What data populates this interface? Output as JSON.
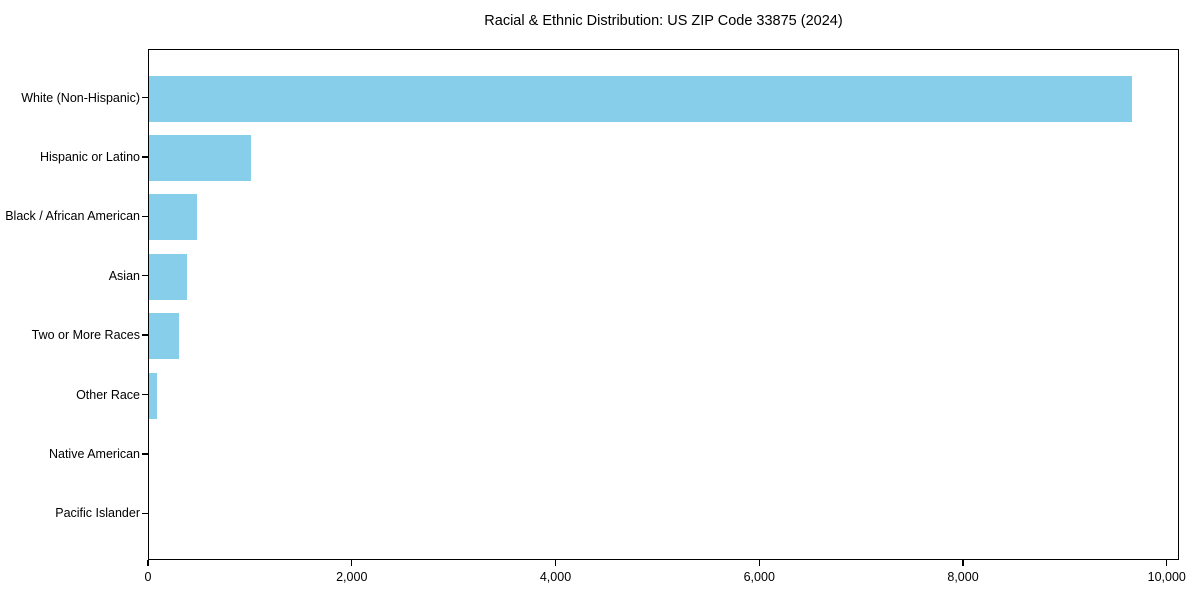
{
  "chart_data": {
    "type": "bar",
    "orientation": "horizontal",
    "title": "Racial & Ethnic Distribution: US ZIP Code 33875 (2024)",
    "categories": [
      "White (Non-Hispanic)",
      "Hispanic or Latino",
      "Black / African American",
      "Asian",
      "Two or More Races",
      "Other Race",
      "Native American",
      "Pacific Islander"
    ],
    "values": [
      9650,
      1000,
      470,
      370,
      295,
      80,
      0,
      0
    ],
    "xlabel": "",
    "ylabel": "",
    "xlim": [
      0,
      10120
    ],
    "xticks": {
      "values": [
        0,
        2000,
        4000,
        6000,
        8000,
        10000
      ],
      "labels": [
        "0",
        "2,000",
        "4,000",
        "6,000",
        "8,000",
        "10,000"
      ]
    },
    "bar_color": "#87CEEB",
    "text_color": "#000000",
    "background_color": "#FFFFFF",
    "grid": false,
    "legend": "none"
  }
}
